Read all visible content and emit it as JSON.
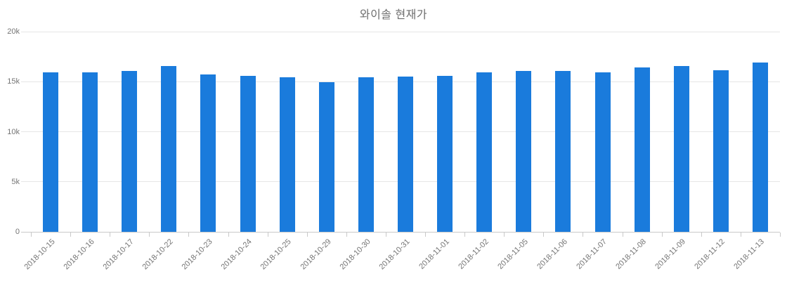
{
  "chart_data": {
    "type": "bar",
    "title": "와이솔 현재가",
    "xlabel": "",
    "ylabel": "",
    "legend": "none",
    "grid": "horizontal",
    "ylim": [
      0,
      20000
    ],
    "ytick_values": [
      0,
      5000,
      10000,
      15000,
      20000
    ],
    "ytick_labels": [
      "0",
      "5k",
      "10k",
      "15k",
      "20k"
    ],
    "categories": [
      "2018-10-15",
      "2018-10-16",
      "2018-10-17",
      "2018-10-22",
      "2018-10-23",
      "2018-10-24",
      "2018-10-25",
      "2018-10-29",
      "2018-10-30",
      "2018-10-31",
      "2018-11-01",
      "2018-11-02",
      "2018-11-05",
      "2018-11-06",
      "2018-11-07",
      "2018-11-08",
      "2018-11-09",
      "2018-11-12",
      "2018-11-13"
    ],
    "values": [
      15950,
      15900,
      16100,
      16550,
      15700,
      15600,
      15450,
      14950,
      15450,
      15500,
      15550,
      15900,
      16100,
      16100,
      15900,
      16450,
      16550,
      16150,
      16900
    ]
  },
  "colors": {
    "bar": "#1a7bdc",
    "grid_line": "#e6e6e6",
    "axis_line": "#c9c9c9",
    "tick_text": "#757575",
    "title_text": "#6e6e6e",
    "background": "#ffffff"
  }
}
